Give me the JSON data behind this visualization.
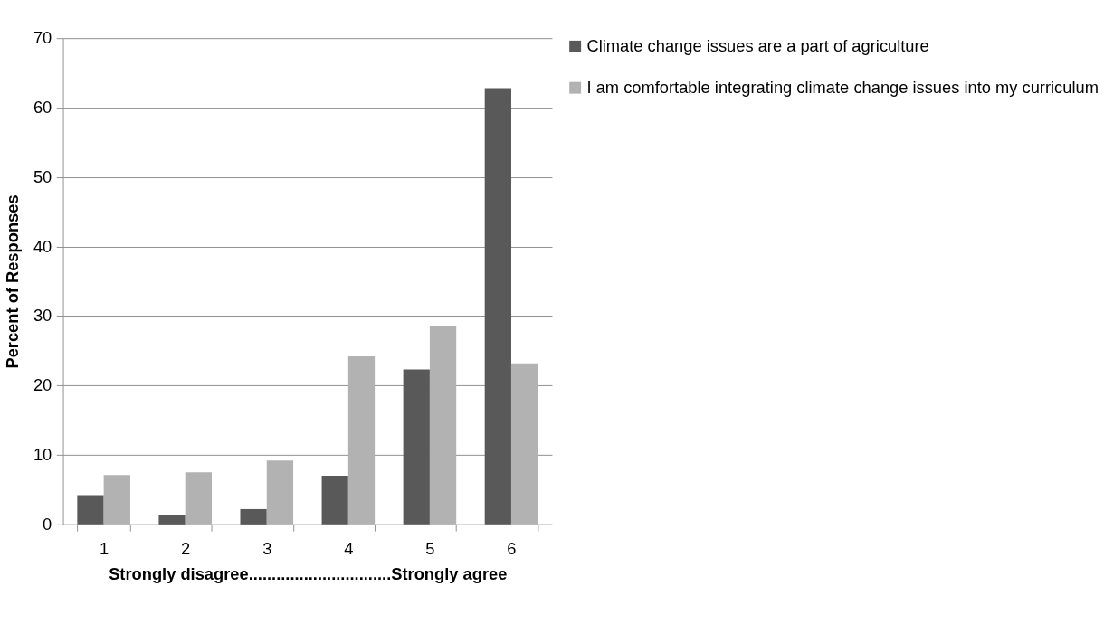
{
  "chart_data": {
    "type": "bar",
    "xlabel": "Strongly disagree...............................Strongly agree",
    "ylabel": "Percent of Responses",
    "categories": [
      "1",
      "2",
      "3",
      "4",
      "5",
      "6"
    ],
    "series": [
      {
        "name": "Climate change issues are a part of agriculture",
        "color": "#595959",
        "values": [
          4.2,
          1.4,
          2.2,
          7.0,
          22.3,
          62.8
        ]
      },
      {
        "name": "I am comfortable integrating climate change issues into my curriculum",
        "color": "#b2b2b2",
        "values": [
          7.1,
          7.5,
          9.2,
          24.2,
          28.5,
          23.2
        ]
      }
    ],
    "ylim": [
      0,
      70
    ],
    "yticks": [
      0,
      10,
      20,
      30,
      40,
      50,
      60,
      70
    ],
    "grid": "y",
    "legend": "right"
  }
}
